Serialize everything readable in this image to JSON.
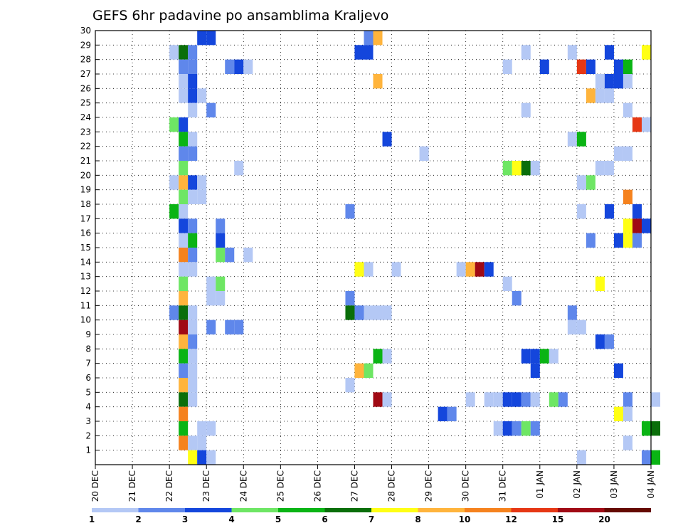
{
  "chart_data": {
    "type": "heatmap",
    "title": "GEFS 6hr padavine po ansamblima Kraljevo",
    "y_ticks": [
      "1",
      "2",
      "3",
      "4",
      "5",
      "6",
      "7",
      "8",
      "9",
      "10",
      "11",
      "12",
      "13",
      "14",
      "15",
      "16",
      "17",
      "18",
      "19",
      "20",
      "21",
      "22",
      "23",
      "24",
      "25",
      "26",
      "27",
      "28",
      "29",
      "30"
    ],
    "x_ticks": [
      "20 DEC",
      "21 DEC",
      "22 DEC",
      "23 DEC",
      "24 DEC",
      "25 DEC",
      "26 DEC",
      "27 DEC",
      "28 DEC",
      "29 DEC",
      "30 DEC",
      "31 DEC",
      "01 JAN",
      "02 JAN",
      "03 JAN",
      "04 JAN"
    ],
    "x_range": [
      "2018-12-20 00:00",
      "2019-01-04 00:00"
    ],
    "time_step_hours": 6,
    "y_range": [
      0,
      30
    ],
    "grid": true,
    "colorbar": {
      "levels": [
        "1",
        "2",
        "3",
        "4",
        "5",
        "6",
        "7",
        "8",
        "10",
        "12",
        "15",
        "20"
      ],
      "colors": [
        "#b4c8f5",
        "#5f87eb",
        "#1446dc",
        "#6ee664",
        "#0ab414",
        "#0a6e0a",
        "#ffff14",
        "#ffb43c",
        "#f5821e",
        "#e63714",
        "#a00a14",
        "#640a00"
      ]
    },
    "cells": [
      {
        "member": 30,
        "time": "2018-12-22 18:00",
        "value": 3
      },
      {
        "member": 30,
        "time": "2018-12-23 00:00",
        "value": 3
      },
      {
        "member": 30,
        "time": "2018-12-27 06:00",
        "value": 2
      },
      {
        "member": 30,
        "time": "2018-12-27 12:00",
        "value": 8
      },
      {
        "member": 29,
        "time": "2018-12-22 00:00",
        "value": 1
      },
      {
        "member": 29,
        "time": "2018-12-22 06:00",
        "value": 6
      },
      {
        "member": 29,
        "time": "2018-12-22 12:00",
        "value": 2
      },
      {
        "member": 29,
        "time": "2018-12-27 00:00",
        "value": 3
      },
      {
        "member": 29,
        "time": "2018-12-27 06:00",
        "value": 3
      },
      {
        "member": 29,
        "time": "2018-12-31 12:00",
        "value": 1
      },
      {
        "member": 29,
        "time": "2019-01-01 18:00",
        "value": 1
      },
      {
        "member": 29,
        "time": "2019-01-02 18:00",
        "value": 3
      },
      {
        "member": 29,
        "time": "2019-01-03 18:00",
        "value": 7
      },
      {
        "member": 28,
        "time": "2018-12-22 06:00",
        "value": 2
      },
      {
        "member": 28,
        "time": "2018-12-22 12:00",
        "value": 2
      },
      {
        "member": 28,
        "time": "2018-12-23 12:00",
        "value": 2
      },
      {
        "member": 28,
        "time": "2018-12-23 18:00",
        "value": 3
      },
      {
        "member": 28,
        "time": "2018-12-24 00:00",
        "value": 1
      },
      {
        "member": 28,
        "time": "2018-12-31 00:00",
        "value": 1
      },
      {
        "member": 28,
        "time": "2019-01-01 00:00",
        "value": 3
      },
      {
        "member": 28,
        "time": "2019-01-02 00:00",
        "value": 12
      },
      {
        "member": 28,
        "time": "2019-01-02 06:00",
        "value": 3
      },
      {
        "member": 28,
        "time": "2019-01-03 00:00",
        "value": 3
      },
      {
        "member": 28,
        "time": "2019-01-03 06:00",
        "value": 5
      },
      {
        "member": 27,
        "time": "2018-12-22 06:00",
        "value": 1
      },
      {
        "member": 27,
        "time": "2018-12-22 12:00",
        "value": 3
      },
      {
        "member": 27,
        "time": "2018-12-27 12:00",
        "value": 8
      },
      {
        "member": 27,
        "time": "2019-01-02 12:00",
        "value": 1
      },
      {
        "member": 27,
        "time": "2019-01-02 18:00",
        "value": 3
      },
      {
        "member": 27,
        "time": "2019-01-03 00:00",
        "value": 3
      },
      {
        "member": 27,
        "time": "2019-01-03 06:00",
        "value": 1
      },
      {
        "member": 26,
        "time": "2018-12-22 06:00",
        "value": 1
      },
      {
        "member": 26,
        "time": "2018-12-22 12:00",
        "value": 3
      },
      {
        "member": 26,
        "time": "2018-12-22 18:00",
        "value": 1
      },
      {
        "member": 26,
        "time": "2019-01-02 06:00",
        "value": 8
      },
      {
        "member": 26,
        "time": "2019-01-02 12:00",
        "value": 1
      },
      {
        "member": 26,
        "time": "2019-01-02 18:00",
        "value": 1
      },
      {
        "member": 25,
        "time": "2018-12-22 12:00",
        "value": 1
      },
      {
        "member": 25,
        "time": "2018-12-23 00:00",
        "value": 2
      },
      {
        "member": 25,
        "time": "2018-12-31 12:00",
        "value": 1
      },
      {
        "member": 25,
        "time": "2019-01-03 06:00",
        "value": 1
      },
      {
        "member": 24,
        "time": "2018-12-22 00:00",
        "value": 4
      },
      {
        "member": 24,
        "time": "2018-12-22 06:00",
        "value": 3
      },
      {
        "member": 24,
        "time": "2019-01-03 12:00",
        "value": 12
      },
      {
        "member": 24,
        "time": "2019-01-03 18:00",
        "value": 1
      },
      {
        "member": 23,
        "time": "2018-12-22 06:00",
        "value": 5
      },
      {
        "member": 23,
        "time": "2018-12-22 12:00",
        "value": 1
      },
      {
        "member": 23,
        "time": "2018-12-27 18:00",
        "value": 3
      },
      {
        "member": 23,
        "time": "2019-01-01 18:00",
        "value": 1
      },
      {
        "member": 23,
        "time": "2019-01-02 00:00",
        "value": 5
      },
      {
        "member": 22,
        "time": "2018-12-22 06:00",
        "value": 2
      },
      {
        "member": 22,
        "time": "2018-12-22 12:00",
        "value": 2
      },
      {
        "member": 22,
        "time": "2018-12-28 18:00",
        "value": 1
      },
      {
        "member": 22,
        "time": "2019-01-03 00:00",
        "value": 1
      },
      {
        "member": 22,
        "time": "2019-01-03 06:00",
        "value": 1
      },
      {
        "member": 21,
        "time": "2018-12-22 06:00",
        "value": 4
      },
      {
        "member": 21,
        "time": "2018-12-23 18:00",
        "value": 1
      },
      {
        "member": 21,
        "time": "2018-12-31 00:00",
        "value": 4
      },
      {
        "member": 21,
        "time": "2018-12-31 06:00",
        "value": 7
      },
      {
        "member": 21,
        "time": "2018-12-31 12:00",
        "value": 6
      },
      {
        "member": 21,
        "time": "2018-12-31 18:00",
        "value": 1
      },
      {
        "member": 21,
        "time": "2019-01-02 12:00",
        "value": 1
      },
      {
        "member": 21,
        "time": "2019-01-02 18:00",
        "value": 1
      },
      {
        "member": 20,
        "time": "2018-12-22 00:00",
        "value": 1
      },
      {
        "member": 20,
        "time": "2018-12-22 06:00",
        "value": 8
      },
      {
        "member": 20,
        "time": "2018-12-22 12:00",
        "value": 3
      },
      {
        "member": 20,
        "time": "2018-12-22 18:00",
        "value": 1
      },
      {
        "member": 20,
        "time": "2019-01-02 00:00",
        "value": 1
      },
      {
        "member": 20,
        "time": "2019-01-02 06:00",
        "value": 4
      },
      {
        "member": 19,
        "time": "2018-12-22 06:00",
        "value": 4
      },
      {
        "member": 19,
        "time": "2018-12-22 12:00",
        "value": 1
      },
      {
        "member": 19,
        "time": "2018-12-22 18:00",
        "value": 1
      },
      {
        "member": 19,
        "time": "2019-01-03 06:00",
        "value": 10
      },
      {
        "member": 18,
        "time": "2018-12-22 00:00",
        "value": 5
      },
      {
        "member": 18,
        "time": "2018-12-22 06:00",
        "value": 1
      },
      {
        "member": 18,
        "time": "2018-12-26 18:00",
        "value": 2
      },
      {
        "member": 18,
        "time": "2019-01-02 00:00",
        "value": 1
      },
      {
        "member": 18,
        "time": "2019-01-02 18:00",
        "value": 3
      },
      {
        "member": 18,
        "time": "2019-01-03 12:00",
        "value": 3
      },
      {
        "member": 17,
        "time": "2018-12-22 06:00",
        "value": 3
      },
      {
        "member": 17,
        "time": "2018-12-22 12:00",
        "value": 2
      },
      {
        "member": 17,
        "time": "2018-12-23 06:00",
        "value": 2
      },
      {
        "member": 17,
        "time": "2019-01-03 06:00",
        "value": 7
      },
      {
        "member": 17,
        "time": "2019-01-03 12:00",
        "value": 15
      },
      {
        "member": 17,
        "time": "2019-01-03 18:00",
        "value": 3
      },
      {
        "member": 16,
        "time": "2018-12-22 06:00",
        "value": 1
      },
      {
        "member": 16,
        "time": "2018-12-22 12:00",
        "value": 5
      },
      {
        "member": 16,
        "time": "2018-12-23 06:00",
        "value": 3
      },
      {
        "member": 16,
        "time": "2019-01-02 06:00",
        "value": 2
      },
      {
        "member": 16,
        "time": "2019-01-03 00:00",
        "value": 3
      },
      {
        "member": 16,
        "time": "2019-01-03 06:00",
        "value": 7
      },
      {
        "member": 16,
        "time": "2019-01-03 12:00",
        "value": 2
      },
      {
        "member": 15,
        "time": "2018-12-22 06:00",
        "value": 10
      },
      {
        "member": 15,
        "time": "2018-12-22 12:00",
        "value": 2
      },
      {
        "member": 15,
        "time": "2018-12-23 06:00",
        "value": 4
      },
      {
        "member": 15,
        "time": "2018-12-23 12:00",
        "value": 2
      },
      {
        "member": 15,
        "time": "2018-12-24 00:00",
        "value": 1
      },
      {
        "member": 14,
        "time": "2018-12-22 06:00",
        "value": 1
      },
      {
        "member": 14,
        "time": "2018-12-22 12:00",
        "value": 1
      },
      {
        "member": 14,
        "time": "2018-12-27 00:00",
        "value": 7
      },
      {
        "member": 14,
        "time": "2018-12-27 06:00",
        "value": 1
      },
      {
        "member": 14,
        "time": "2018-12-28 00:00",
        "value": 1
      },
      {
        "member": 14,
        "time": "2018-12-29 18:00",
        "value": 1
      },
      {
        "member": 14,
        "time": "2018-12-30 00:00",
        "value": 8
      },
      {
        "member": 14,
        "time": "2018-12-30 06:00",
        "value": 15
      },
      {
        "member": 14,
        "time": "2018-12-30 12:00",
        "value": 3
      },
      {
        "member": 13,
        "time": "2018-12-22 06:00",
        "value": 4
      },
      {
        "member": 13,
        "time": "2018-12-23 00:00",
        "value": 1
      },
      {
        "member": 13,
        "time": "2018-12-23 06:00",
        "value": 4
      },
      {
        "member": 13,
        "time": "2018-12-31 00:00",
        "value": 1
      },
      {
        "member": 13,
        "time": "2019-01-02 12:00",
        "value": 7
      },
      {
        "member": 12,
        "time": "2018-12-22 06:00",
        "value": 8
      },
      {
        "member": 12,
        "time": "2018-12-23 00:00",
        "value": 1
      },
      {
        "member": 12,
        "time": "2018-12-23 06:00",
        "value": 1
      },
      {
        "member": 12,
        "time": "2018-12-26 18:00",
        "value": 2
      },
      {
        "member": 12,
        "time": "2018-12-31 06:00",
        "value": 2
      },
      {
        "member": 11,
        "time": "2018-12-22 00:00",
        "value": 2
      },
      {
        "member": 11,
        "time": "2018-12-22 06:00",
        "value": 6
      },
      {
        "member": 11,
        "time": "2018-12-22 12:00",
        "value": 1
      },
      {
        "member": 11,
        "time": "2018-12-26 18:00",
        "value": 6
      },
      {
        "member": 11,
        "time": "2018-12-27 00:00",
        "value": 2
      },
      {
        "member": 11,
        "time": "2018-12-27 06:00",
        "value": 1
      },
      {
        "member": 11,
        "time": "2018-12-27 12:00",
        "value": 1
      },
      {
        "member": 11,
        "time": "2018-12-27 18:00",
        "value": 1
      },
      {
        "member": 11,
        "time": "2019-01-01 18:00",
        "value": 2
      },
      {
        "member": 10,
        "time": "2018-12-22 06:00",
        "value": 15
      },
      {
        "member": 10,
        "time": "2018-12-22 12:00",
        "value": 1
      },
      {
        "member": 10,
        "time": "2018-12-23 00:00",
        "value": 2
      },
      {
        "member": 10,
        "time": "2018-12-23 12:00",
        "value": 2
      },
      {
        "member": 10,
        "time": "2018-12-23 18:00",
        "value": 2
      },
      {
        "member": 10,
        "time": "2019-01-01 18:00",
        "value": 1
      },
      {
        "member": 10,
        "time": "2019-01-02 00:00",
        "value": 1
      },
      {
        "member": 9,
        "time": "2018-12-22 06:00",
        "value": 8
      },
      {
        "member": 9,
        "time": "2018-12-22 12:00",
        "value": 2
      },
      {
        "member": 9,
        "time": "2019-01-02 12:00",
        "value": 3
      },
      {
        "member": 9,
        "time": "2019-01-02 18:00",
        "value": 2
      },
      {
        "member": 8,
        "time": "2018-12-22 06:00",
        "value": 5
      },
      {
        "member": 8,
        "time": "2018-12-22 12:00",
        "value": 1
      },
      {
        "member": 8,
        "time": "2018-12-27 12:00",
        "value": 5
      },
      {
        "member": 8,
        "time": "2018-12-27 18:00",
        "value": 1
      },
      {
        "member": 8,
        "time": "2018-12-31 12:00",
        "value": 3
      },
      {
        "member": 8,
        "time": "2018-12-31 18:00",
        "value": 3
      },
      {
        "member": 8,
        "time": "2019-01-01 00:00",
        "value": 5
      },
      {
        "member": 8,
        "time": "2019-01-01 06:00",
        "value": 1
      },
      {
        "member": 7,
        "time": "2018-12-22 06:00",
        "value": 2
      },
      {
        "member": 7,
        "time": "2018-12-22 12:00",
        "value": 1
      },
      {
        "member": 7,
        "time": "2018-12-27 00:00",
        "value": 8
      },
      {
        "member": 7,
        "time": "2018-12-27 06:00",
        "value": 4
      },
      {
        "member": 7,
        "time": "2018-12-31 18:00",
        "value": 3
      },
      {
        "member": 7,
        "time": "2019-01-03 00:00",
        "value": 3
      },
      {
        "member": 6,
        "time": "2018-12-22 06:00",
        "value": 8
      },
      {
        "member": 6,
        "time": "2018-12-22 12:00",
        "value": 1
      },
      {
        "member": 6,
        "time": "2018-12-26 18:00",
        "value": 1
      },
      {
        "member": 5,
        "time": "2018-12-22 06:00",
        "value": 6
      },
      {
        "member": 5,
        "time": "2018-12-22 12:00",
        "value": 1
      },
      {
        "member": 5,
        "time": "2018-12-27 12:00",
        "value": 15
      },
      {
        "member": 5,
        "time": "2018-12-27 18:00",
        "value": 1
      },
      {
        "member": 5,
        "time": "2018-12-30 00:00",
        "value": 1
      },
      {
        "member": 5,
        "time": "2018-12-30 12:00",
        "value": 1
      },
      {
        "member": 5,
        "time": "2018-12-30 18:00",
        "value": 1
      },
      {
        "member": 5,
        "time": "2018-12-31 00:00",
        "value": 3
      },
      {
        "member": 5,
        "time": "2018-12-31 06:00",
        "value": 3
      },
      {
        "member": 5,
        "time": "2018-12-31 12:00",
        "value": 2
      },
      {
        "member": 5,
        "time": "2018-12-31 18:00",
        "value": 1
      },
      {
        "member": 5,
        "time": "2019-01-01 06:00",
        "value": 4
      },
      {
        "member": 5,
        "time": "2019-01-01 12:00",
        "value": 2
      },
      {
        "member": 5,
        "time": "2019-01-03 06:00",
        "value": 2
      },
      {
        "member": 5,
        "time": "2019-01-04 00:00",
        "value": 1
      },
      {
        "member": 4,
        "time": "2018-12-22 06:00",
        "value": 10
      },
      {
        "member": 4,
        "time": "2018-12-29 06:00",
        "value": 3
      },
      {
        "member": 4,
        "time": "2018-12-29 12:00",
        "value": 2
      },
      {
        "member": 4,
        "time": "2019-01-03 00:00",
        "value": 7
      },
      {
        "member": 4,
        "time": "2019-01-03 06:00",
        "value": 1
      },
      {
        "member": 3,
        "time": "2018-12-22 06:00",
        "value": 5
      },
      {
        "member": 3,
        "time": "2018-12-22 18:00",
        "value": 1
      },
      {
        "member": 3,
        "time": "2018-12-23 00:00",
        "value": 1
      },
      {
        "member": 3,
        "time": "2018-12-30 18:00",
        "value": 1
      },
      {
        "member": 3,
        "time": "2018-12-31 00:00",
        "value": 3
      },
      {
        "member": 3,
        "time": "2018-12-31 06:00",
        "value": 2
      },
      {
        "member": 3,
        "time": "2018-12-31 12:00",
        "value": 4
      },
      {
        "member": 3,
        "time": "2018-12-31 18:00",
        "value": 2
      },
      {
        "member": 3,
        "time": "2019-01-03 18:00",
        "value": 5
      },
      {
        "member": 3,
        "time": "2019-01-04 00:00",
        "value": 6
      },
      {
        "member": 2,
        "time": "2018-12-22 06:00",
        "value": 10
      },
      {
        "member": 2,
        "time": "2018-12-22 12:00",
        "value": 1
      },
      {
        "member": 2,
        "time": "2018-12-22 18:00",
        "value": 1
      },
      {
        "member": 2,
        "time": "2019-01-03 06:00",
        "value": 1
      },
      {
        "member": 1,
        "time": "2018-12-22 12:00",
        "value": 7
      },
      {
        "member": 1,
        "time": "2018-12-22 18:00",
        "value": 3
      },
      {
        "member": 1,
        "time": "2018-12-23 00:00",
        "value": 1
      },
      {
        "member": 1,
        "time": "2019-01-02 00:00",
        "value": 1
      },
      {
        "member": 1,
        "time": "2019-01-03 18:00",
        "value": 2
      },
      {
        "member": 1,
        "time": "2019-01-04 00:00",
        "value": 5
      }
    ]
  }
}
